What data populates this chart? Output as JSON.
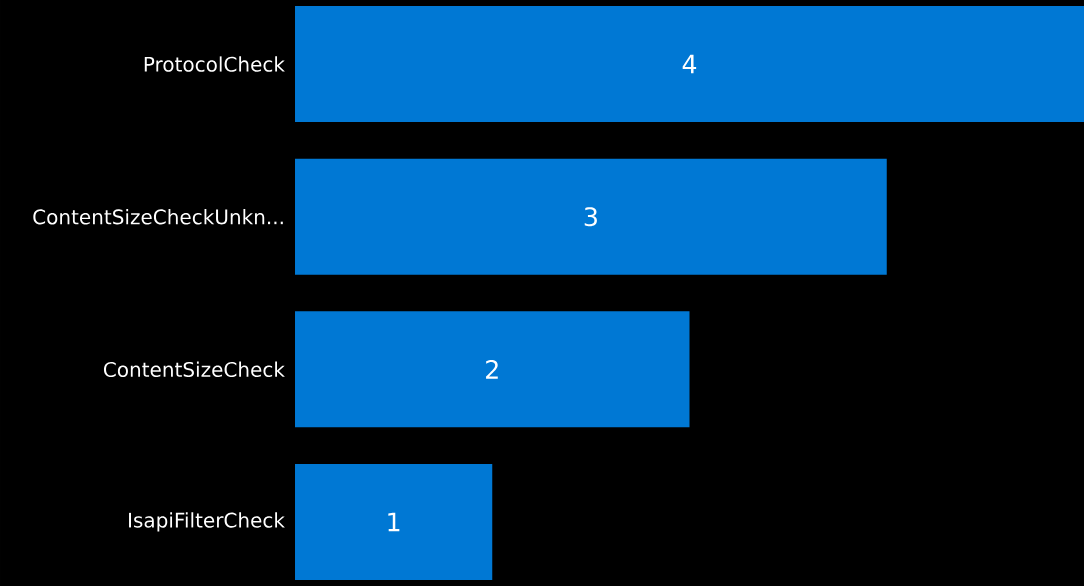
{
  "chart_data": {
    "type": "bar",
    "orientation": "horizontal",
    "categories": [
      "ProtocolCheck",
      "ContentSizeCheckUnkn...",
      "ContentSizeCheck",
      "IsapiFilterCheck"
    ],
    "values": [
      4,
      3,
      2,
      1
    ],
    "color": "#0078d4",
    "data_labels": true
  }
}
